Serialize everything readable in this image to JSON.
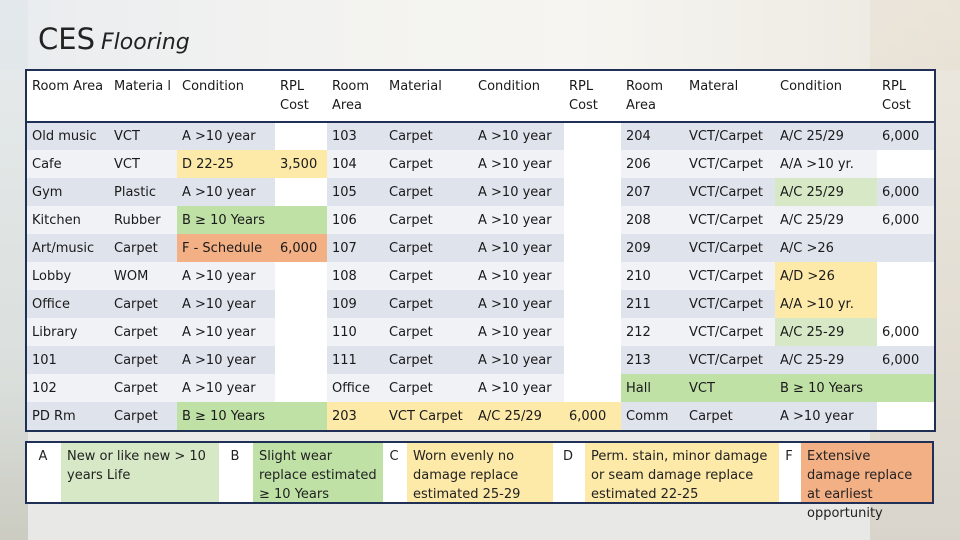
{
  "title": {
    "main": "CES",
    "sub": "Flooring"
  },
  "headers": [
    "Room Area",
    "Materia l",
    "Condition",
    "RPL Cost",
    "Room Area",
    "Material",
    "Condition",
    "RPL Cost",
    "Room Area",
    "Materal",
    "Condition",
    "RPL Cost"
  ],
  "rows": [
    [
      "Old music",
      "VCT",
      "A >10 year",
      "",
      "103",
      "Carpet",
      "A >10 year",
      "",
      "204",
      "VCT/Carpet",
      "A/C 25/29",
      "6,000"
    ],
    [
      "Cafe",
      "VCT",
      "D 22-25",
      "3,500",
      "104",
      "Carpet",
      "A >10 year",
      "",
      "206",
      "VCT/Carpet",
      "A/A >10 yr.",
      ""
    ],
    [
      "Gym",
      "Plastic",
      "A >10 year",
      "",
      "105",
      "Carpet",
      "A >10 year",
      "",
      "207",
      "VCT/Carpet",
      "A/C 25/29",
      "6,000"
    ],
    [
      "Kitchen",
      "Rubber",
      "B ≥ 10 Years",
      "",
      "106",
      "Carpet",
      "A >10 year",
      "",
      "208",
      "VCT/Carpet",
      "A/C 25/29",
      "6,000"
    ],
    [
      "Art/music",
      "Carpet",
      "F - Schedule",
      "6,000",
      "107",
      "Carpet",
      "A >10 year",
      "",
      "209",
      "VCT/Carpet",
      "A/C >26",
      ""
    ],
    [
      "Lobby",
      "WOM",
      "A >10 year",
      "",
      "108",
      "Carpet",
      "A >10 year",
      "",
      "210",
      "VCT/Carpet",
      "A/D >26",
      ""
    ],
    [
      "Office",
      "Carpet",
      "A >10 year",
      "",
      "109",
      "Carpet",
      "A >10 year",
      "",
      "211",
      "VCT/Carpet",
      "A/A >10 yr.",
      ""
    ],
    [
      "Library",
      "Carpet",
      "A >10 year",
      "",
      "110",
      "Carpet",
      "A >10 year",
      "",
      "212",
      "VCT/Carpet",
      "A/C 25-29",
      "6,000"
    ],
    [
      "101",
      "Carpet",
      "A >10 year",
      "",
      "111",
      "Carpet",
      "A >10 year",
      "",
      "213",
      "VCT/Carpet",
      "A/C 25-29",
      "6,000"
    ],
    [
      "102",
      "Carpet",
      "A >10 year",
      "",
      "Office",
      "Carpet",
      "A >10 year",
      "",
      "Hall",
      "VCT",
      "B ≥ 10 Years",
      ""
    ],
    [
      "PD Rm",
      "Carpet",
      "B ≥ 10 Years",
      "",
      "203",
      "VCT Carpet",
      "A/C 25/29",
      "6,000",
      "Comm",
      "Carpet",
      "A >10 year",
      ""
    ]
  ],
  "legend": [
    {
      "key": "A",
      "text": "New or like new > 10 years Life"
    },
    {
      "key": "B",
      "text": "Slight wear replace estimated ≥ 10 Years"
    },
    {
      "key": "C",
      "text": "Worn evenly no damage replace estimated 25-29"
    },
    {
      "key": "D",
      "text": "Perm. stain, minor damage or seam damage replace estimated 22-25"
    },
    {
      "key": "F",
      "text": "Extensive damage replace at earliest opportunity"
    }
  ],
  "colors": {
    "A": "#ffffff",
    "B": "#bfe1a6",
    "C": "#fde9a8",
    "D": "#fde9a8",
    "F": "#f4b085",
    "border": "#1f2f55",
    "row_odd": "#dfe3ec",
    "row_even": "#f0f2f6"
  }
}
